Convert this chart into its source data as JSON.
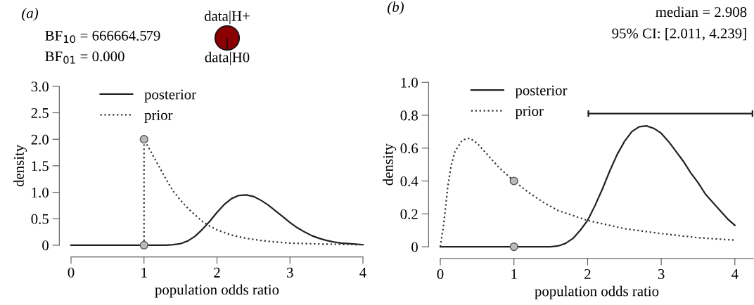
{
  "chart_data": [
    {
      "type": "pie",
      "categories": [
        "data|H+",
        "data|H0"
      ],
      "values": [
        100,
        0
      ],
      "colors": [
        "#8b0000",
        "#ffffff"
      ]
    },
    {
      "type": "line",
      "title": "(a)",
      "xlabel": "population odds ratio",
      "ylabel": "density",
      "xlim": [
        0,
        4
      ],
      "ylim": [
        0,
        3
      ],
      "xticks": [
        0,
        1,
        2,
        3,
        4
      ],
      "yticks": [
        {
          "value": 0,
          "label": "0"
        },
        0.5,
        {
          "value": 1,
          "label": "1.0"
        },
        1.5,
        {
          "value": 2,
          "label": "2.0"
        },
        2.5,
        {
          "value": 3,
          "label": "3.0"
        }
      ],
      "grid": false,
      "legend": "top left",
      "annotations": [
        "BF$_{10}$ = 666664.579",
        "BF$_{01}$ = 0.000"
      ],
      "series": [
        {
          "name": "posterior",
          "type": "line",
          "line_style": "solid",
          "color": "#222222",
          "x": [
            0,
            1.3,
            1.4,
            1.5,
            1.6,
            1.7,
            1.8,
            1.9,
            2.0,
            2.1,
            2.2,
            2.3,
            2.4,
            2.5,
            2.6,
            2.7,
            2.8,
            2.9,
            3.0,
            3.1,
            3.2,
            3.3,
            3.4,
            3.5,
            3.6,
            3.7,
            3.8,
            3.9,
            4.0
          ],
          "values": [
            0,
            0,
            0.01,
            0.03,
            0.08,
            0.17,
            0.3,
            0.45,
            0.62,
            0.77,
            0.88,
            0.94,
            0.95,
            0.92,
            0.85,
            0.76,
            0.65,
            0.54,
            0.43,
            0.33,
            0.25,
            0.18,
            0.13,
            0.09,
            0.06,
            0.04,
            0.03,
            0.02,
            0.01
          ]
        },
        {
          "name": "prior",
          "type": "line",
          "line_style": "dotted",
          "color": "#333333",
          "x": [
            1,
            1,
            1.1,
            1.2,
            1.3,
            1.4,
            1.5,
            1.6,
            1.7,
            1.8,
            1.9,
            2.0,
            2.2,
            2.4,
            2.6,
            2.8,
            3.0,
            3.5,
            4.0
          ],
          "values": [
            0,
            2.0,
            1.75,
            1.5,
            1.25,
            1.02,
            0.85,
            0.7,
            0.57,
            0.45,
            0.36,
            0.29,
            0.19,
            0.13,
            0.09,
            0.06,
            0.04,
            0.02,
            0.01
          ]
        },
        {
          "type": "scatter",
          "marker": "circle",
          "color": "#bbbbbb",
          "x": [
            1,
            1
          ],
          "values": [
            2.0,
            0
          ]
        }
      ]
    },
    {
      "type": "line",
      "title": "(b)",
      "xlabel": "population odds ratio",
      "ylabel": "density",
      "xlim": [
        0,
        4.25
      ],
      "ylim": [
        0,
        1
      ],
      "xticks": [
        0,
        1,
        2,
        3,
        4
      ],
      "yticks": [
        {
          "value": 0,
          "label": "0"
        },
        0.2,
        0.4,
        0.6,
        0.8,
        {
          "value": 1,
          "label": "1.0"
        }
      ],
      "grid": false,
      "legend": "top left",
      "annotations": [
        "median = 2.908",
        "95% CI: [2.011, 4.239]"
      ],
      "series": [
        {
          "name": "posterior",
          "type": "line",
          "line_style": "solid",
          "color": "#222222",
          "x": [
            0,
            1.5,
            1.6,
            1.7,
            1.8,
            1.9,
            2.0,
            2.1,
            2.2,
            2.3,
            2.4,
            2.5,
            2.6,
            2.7,
            2.8,
            2.9,
            3.0,
            3.1,
            3.2,
            3.3,
            3.4,
            3.5,
            3.6,
            3.7,
            3.8,
            3.9,
            4.0
          ],
          "values": [
            0,
            0,
            0.005,
            0.02,
            0.05,
            0.1,
            0.16,
            0.25,
            0.35,
            0.46,
            0.56,
            0.64,
            0.7,
            0.73,
            0.735,
            0.72,
            0.69,
            0.64,
            0.58,
            0.52,
            0.45,
            0.39,
            0.32,
            0.27,
            0.22,
            0.17,
            0.13
          ]
        },
        {
          "name": "prior",
          "type": "line",
          "line_style": "dotted",
          "color": "#333333",
          "x": [
            0,
            0.05,
            0.1,
            0.15,
            0.2,
            0.3,
            0.4,
            0.5,
            0.6,
            0.7,
            0.8,
            0.9,
            1.0,
            1.2,
            1.4,
            1.6,
            1.8,
            2.0,
            2.2,
            2.5,
            3.0,
            3.5,
            4.0
          ],
          "values": [
            0,
            0.15,
            0.36,
            0.5,
            0.58,
            0.65,
            0.66,
            0.63,
            0.58,
            0.53,
            0.48,
            0.44,
            0.4,
            0.33,
            0.27,
            0.22,
            0.19,
            0.16,
            0.14,
            0.11,
            0.08,
            0.055,
            0.04
          ]
        },
        {
          "type": "scatter",
          "marker": "circle",
          "color": "#bbbbbb",
          "x": [
            1,
            1
          ],
          "values": [
            0.4,
            0
          ]
        },
        {
          "type": "line",
          "line_style": "solid",
          "color": "#222222",
          "x": [
            2.011,
            4.239
          ],
          "values": [
            0.81,
            0.81
          ],
          "errors": [
            0.02,
            0.02
          ]
        }
      ]
    }
  ]
}
